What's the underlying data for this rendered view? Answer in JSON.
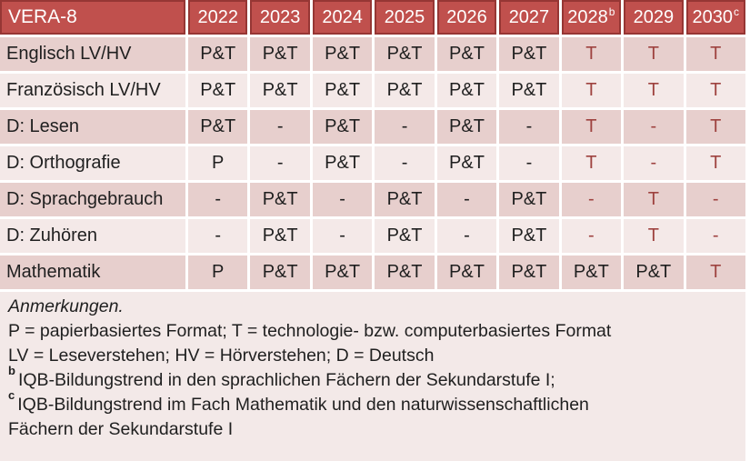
{
  "table": {
    "title": "VERA-8",
    "years": [
      {
        "label": "2022",
        "sup": ""
      },
      {
        "label": "2023",
        "sup": ""
      },
      {
        "label": "2024",
        "sup": ""
      },
      {
        "label": "2025",
        "sup": ""
      },
      {
        "label": "2026",
        "sup": ""
      },
      {
        "label": "2027",
        "sup": ""
      },
      {
        "label": "2028",
        "sup": "b"
      },
      {
        "label": "2029",
        "sup": ""
      },
      {
        "label": "2030",
        "sup": "c"
      }
    ],
    "rows": [
      {
        "label": "Englisch LV/HV",
        "cells": [
          {
            "text": "P&T",
            "accent": false
          },
          {
            "text": "P&T",
            "accent": false
          },
          {
            "text": "P&T",
            "accent": false
          },
          {
            "text": "P&T",
            "accent": false
          },
          {
            "text": "P&T",
            "accent": false
          },
          {
            "text": "P&T",
            "accent": false
          },
          {
            "text": "T",
            "accent": true
          },
          {
            "text": "T",
            "accent": true
          },
          {
            "text": "T",
            "accent": true
          }
        ]
      },
      {
        "label": "Französisch LV/HV",
        "cells": [
          {
            "text": "P&T",
            "accent": false
          },
          {
            "text": "P&T",
            "accent": false
          },
          {
            "text": "P&T",
            "accent": false
          },
          {
            "text": "P&T",
            "accent": false
          },
          {
            "text": "P&T",
            "accent": false
          },
          {
            "text": "P&T",
            "accent": false
          },
          {
            "text": "T",
            "accent": true
          },
          {
            "text": "T",
            "accent": true
          },
          {
            "text": "T",
            "accent": true
          }
        ]
      },
      {
        "label": "D: Lesen",
        "cells": [
          {
            "text": "P&T",
            "accent": false
          },
          {
            "text": "-",
            "accent": false
          },
          {
            "text": "P&T",
            "accent": false
          },
          {
            "text": "-",
            "accent": false
          },
          {
            "text": "P&T",
            "accent": false
          },
          {
            "text": "-",
            "accent": false
          },
          {
            "text": "T",
            "accent": true
          },
          {
            "text": "-",
            "accent": true
          },
          {
            "text": "T",
            "accent": true
          }
        ]
      },
      {
        "label": "D: Orthografie",
        "cells": [
          {
            "text": "P",
            "accent": false
          },
          {
            "text": "-",
            "accent": false
          },
          {
            "text": "P&T",
            "accent": false
          },
          {
            "text": "-",
            "accent": false
          },
          {
            "text": "P&T",
            "accent": false
          },
          {
            "text": "-",
            "accent": false
          },
          {
            "text": "T",
            "accent": true
          },
          {
            "text": "-",
            "accent": true
          },
          {
            "text": "T",
            "accent": true
          }
        ]
      },
      {
        "label": "D: Sprachgebrauch",
        "cells": [
          {
            "text": "-",
            "accent": false
          },
          {
            "text": "P&T",
            "accent": false
          },
          {
            "text": "-",
            "accent": false
          },
          {
            "text": "P&T",
            "accent": false
          },
          {
            "text": "-",
            "accent": false
          },
          {
            "text": "P&T",
            "accent": false
          },
          {
            "text": "-",
            "accent": true
          },
          {
            "text": "T",
            "accent": true
          },
          {
            "text": "-",
            "accent": true
          }
        ]
      },
      {
        "label": "D: Zuhören",
        "cells": [
          {
            "text": "-",
            "accent": false
          },
          {
            "text": "P&T",
            "accent": false
          },
          {
            "text": "-",
            "accent": false
          },
          {
            "text": "P&T",
            "accent": false
          },
          {
            "text": "-",
            "accent": false
          },
          {
            "text": "P&T",
            "accent": false
          },
          {
            "text": "-",
            "accent": true
          },
          {
            "text": "T",
            "accent": true
          },
          {
            "text": "-",
            "accent": true
          }
        ]
      },
      {
        "label": "Mathematik",
        "cells": [
          {
            "text": "P",
            "accent": false
          },
          {
            "text": "P&T",
            "accent": false
          },
          {
            "text": "P&T",
            "accent": false
          },
          {
            "text": "P&T",
            "accent": false
          },
          {
            "text": "P&T",
            "accent": false
          },
          {
            "text": "P&T",
            "accent": false
          },
          {
            "text": "P&T",
            "accent": false
          },
          {
            "text": "P&T",
            "accent": false
          },
          {
            "text": "T",
            "accent": true
          }
        ]
      }
    ]
  },
  "notes": {
    "heading": "Anmerkungen.",
    "legend_format": "P = papierbasiertes Format; T = technologie- bzw. computerbasiertes Format",
    "legend_abbr": "LV = Leseverstehen; HV = Hörverstehen; D = Deutsch",
    "note_b": {
      "sup": "b",
      "text": "IQB-Bildungstrend in den sprachlichen Fächern der Sekundarstufe I;"
    },
    "note_c": {
      "sup": "c",
      "line1": "IQB-Bildungstrend im Fach Mathematik und den naturwissenschaftlichen",
      "line2": "Fächern der Sekundarstufe I"
    }
  },
  "colors": {
    "header_bg": "#C0504D",
    "header_border": "#963634",
    "header_text": "#FFFFFF",
    "band_dark": "#E7CFCD",
    "band_light": "#F4E9E8",
    "notes_bg": "#F3E9E8",
    "accent_text": "#9E423F",
    "body_text": "#1F1F1F"
  }
}
